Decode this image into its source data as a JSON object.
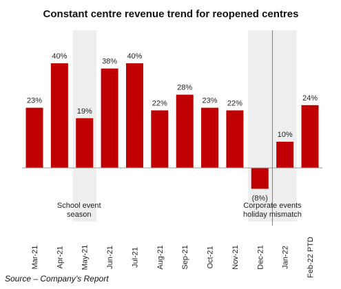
{
  "chart_data": {
    "type": "bar",
    "title": "Constant centre revenue  trend for reopened centres",
    "categories": [
      "Mar-21",
      "Apr-21",
      "May-21",
      "Jun-21",
      "Jul-21",
      "Aug-21",
      "Sep-21",
      "Oct-21",
      "Nov-21",
      "Dec-21",
      "Jan-22",
      "Feb-22 PTD"
    ],
    "values": [
      23,
      40,
      19,
      38,
      40,
      22,
      28,
      23,
      22,
      -8,
      10,
      24
    ],
    "value_labels": [
      "23%",
      "40%",
      "19%",
      "38%",
      "40%",
      "22%",
      "28%",
      "23%",
      "22%",
      "(8%)",
      "10%",
      "24%"
    ],
    "unit": "%",
    "bar_color": "#c00000",
    "shaded_color": "#eeeeee",
    "grid": false,
    "legend": "none",
    "ylim": [
      -8,
      40
    ],
    "annotations": [
      {
        "lines": [
          "School event",
          "season"
        ],
        "shaded_categories": [
          "May-21"
        ]
      },
      {
        "lines": [
          "Corporate events",
          "holiday mismatch"
        ],
        "shaded_categories": [
          "Dec-21",
          "Jan-22"
        ],
        "divider_between": [
          "Dec-21",
          "Jan-22"
        ]
      }
    ]
  },
  "footer": {
    "source": "Source – Company’s Report"
  }
}
